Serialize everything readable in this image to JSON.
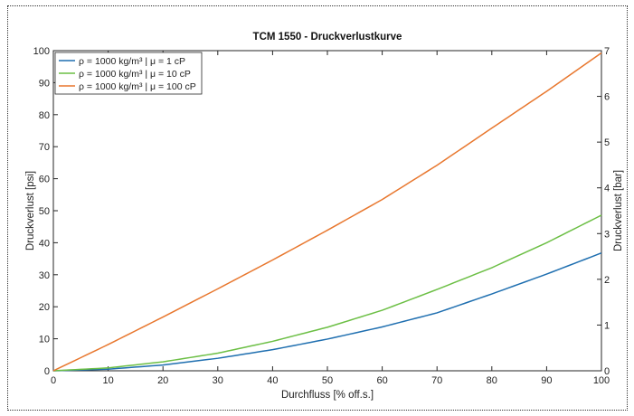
{
  "chart_data": {
    "type": "line",
    "title": "TCM 1550 - Druckverlustkurve",
    "xlabel": "Durchfluss [% off.s.]",
    "ylabel": "Druckverlust [psi]",
    "y2label": "Druckverlust [bar]",
    "xlim": [
      0,
      100
    ],
    "ylim": [
      0,
      100
    ],
    "y2lim": [
      0,
      7
    ],
    "xticks": [
      "0",
      "10",
      "20",
      "30",
      "40",
      "50",
      "60",
      "70",
      "80",
      "90",
      "100"
    ],
    "yticks": [
      "0",
      "10",
      "20",
      "30",
      "40",
      "50",
      "60",
      "70",
      "80",
      "90",
      "100"
    ],
    "y2ticks": [
      "0",
      "1",
      "2",
      "3",
      "4",
      "5",
      "6",
      "7"
    ],
    "grid": false,
    "legend_position": "top-left",
    "x": [
      0,
      10,
      20,
      30,
      40,
      50,
      60,
      70,
      80,
      90,
      100
    ],
    "series": [
      {
        "name": "ρ = 1000 kg/m³ | μ = 1 cP",
        "color": "#1f6fb0",
        "values": [
          0,
          0.5,
          1.8,
          3.9,
          6.6,
          9.9,
          13.7,
          18.1,
          24.0,
          30.2,
          36.8
        ]
      },
      {
        "name": "ρ = 1000 kg/m³ | μ = 10 cP",
        "color": "#6cbf45",
        "values": [
          0,
          0.9,
          2.8,
          5.5,
          9.2,
          13.6,
          18.9,
          25.4,
          32.2,
          40.0,
          48.6
        ]
      },
      {
        "name": "ρ = 1000 kg/m³ | μ = 100 cP",
        "color": "#e8772e",
        "values": [
          0,
          8.2,
          16.8,
          25.6,
          34.6,
          43.9,
          53.5,
          64.2,
          75.8,
          87.3,
          99.3
        ]
      }
    ]
  }
}
